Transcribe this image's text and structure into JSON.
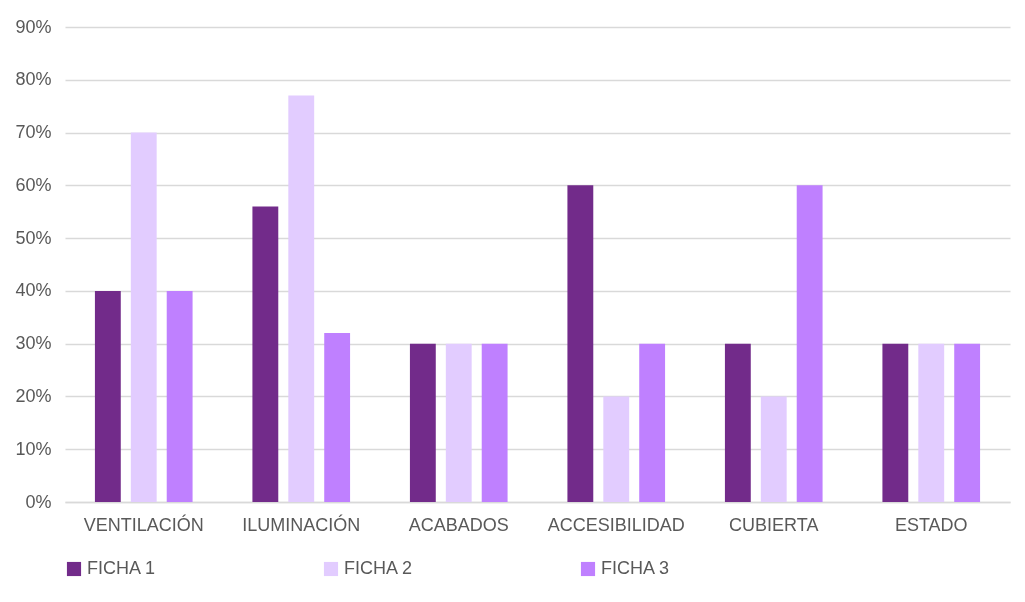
{
  "chart_data": {
    "type": "bar",
    "categories": [
      "VENTILACIÓN",
      "ILUMINACIÓN",
      "ACABADOS",
      "ACCESIBILIDAD",
      "CUBIERTA",
      "ESTADO"
    ],
    "series": [
      {
        "name": "FICHA 1",
        "color": "#722b8a",
        "values": [
          40,
          56,
          30,
          60,
          30,
          30
        ]
      },
      {
        "name": "FICHA 2",
        "color": "#e2ccff",
        "values": [
          70,
          77,
          30,
          20,
          20,
          30
        ]
      },
      {
        "name": "FICHA 3",
        "color": "#bf80ff",
        "values": [
          40,
          32,
          30,
          30,
          60,
          30
        ]
      }
    ],
    "ylim": [
      0,
      90
    ],
    "yticks": [
      {
        "value": 0,
        "label": "0%"
      },
      {
        "value": 10,
        "label": "10%"
      },
      {
        "value": 20,
        "label": "20%"
      },
      {
        "value": 30,
        "label": "30%"
      },
      {
        "value": 40,
        "label": "40%"
      },
      {
        "value": 50,
        "label": "50%"
      },
      {
        "value": 60,
        "label": "60%"
      },
      {
        "value": 70,
        "label": "70%"
      },
      {
        "value": 80,
        "label": "80%"
      },
      {
        "value": 90,
        "label": "90%"
      }
    ],
    "grid": "y",
    "legend": "bottom"
  }
}
